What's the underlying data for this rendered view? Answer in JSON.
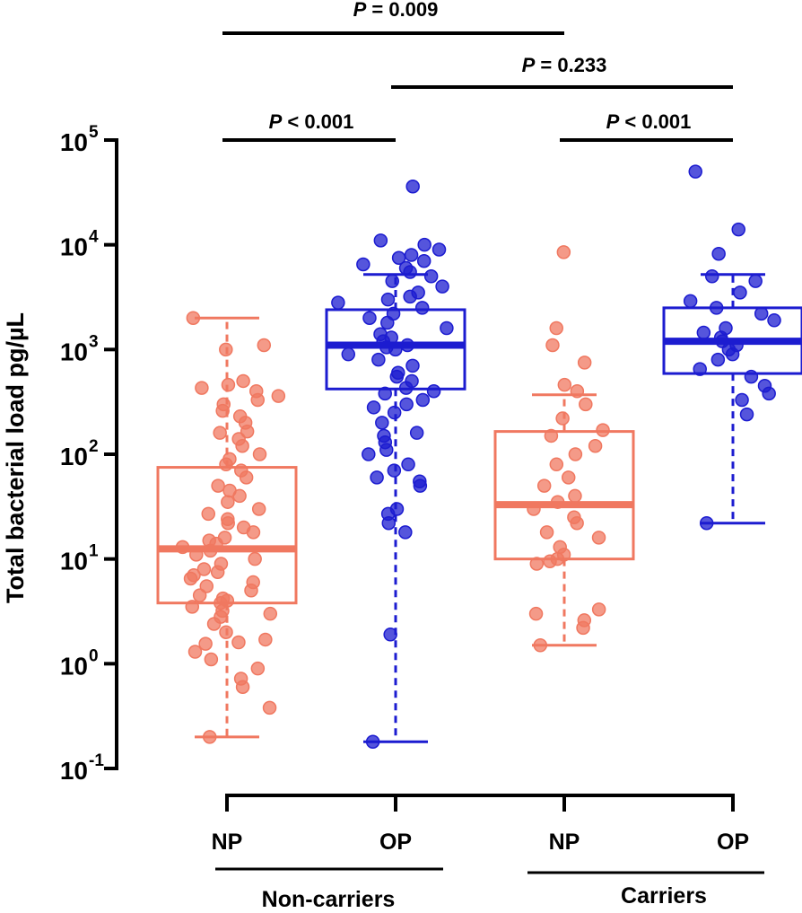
{
  "chart_data": {
    "type": "boxplot",
    "ylabel": "Total bacterial load pg/µL",
    "yscale": "log10",
    "ylim": [
      0.1,
      100000
    ],
    "y_ticks": [
      {
        "value": 0.1,
        "base": "10",
        "exp": "-1"
      },
      {
        "value": 1,
        "base": "10",
        "exp": "0"
      },
      {
        "value": 10,
        "base": "10",
        "exp": "1"
      },
      {
        "value": 100,
        "base": "10",
        "exp": "2"
      },
      {
        "value": 1000,
        "base": "10",
        "exp": "3"
      },
      {
        "value": 10000,
        "base": "10",
        "exp": "4"
      },
      {
        "value": 100000,
        "base": "10",
        "exp": "5"
      }
    ],
    "groups": [
      {
        "label": "Non-carriers",
        "categories": [
          0,
          1
        ]
      },
      {
        "label": "Carriers",
        "categories": [
          2,
          3
        ]
      }
    ],
    "categories": [
      "NP",
      "OP",
      "NP",
      "OP"
    ],
    "colors": {
      "NP": "#f07860",
      "OP": "#1c1cd0"
    },
    "boxes": [
      {
        "category": "NP",
        "group": "Non-carriers",
        "min": 0.2,
        "q1": 3.8,
        "median": 12.5,
        "q3": 75,
        "max": 2000,
        "points": [
          0.2,
          0.38,
          0.6,
          0.72,
          0.9,
          1.1,
          1.3,
          1.55,
          1.6,
          1.7,
          2,
          2.4,
          2.8,
          3,
          3.2,
          3.5,
          3.8,
          4,
          4.2,
          4.5,
          5,
          5.5,
          6,
          6.5,
          7,
          7.5,
          8,
          9,
          10,
          11,
          12,
          13,
          14,
          15,
          16,
          18,
          20,
          22,
          24,
          27,
          30,
          35,
          40,
          45,
          50,
          60,
          70,
          80,
          90,
          100,
          120,
          140,
          160,
          165,
          200,
          230,
          260,
          300,
          330,
          360,
          400,
          430,
          460,
          500,
          1000,
          1100,
          2000
        ]
      },
      {
        "category": "OP",
        "group": "Non-carriers",
        "min": 0.18,
        "q1": 420,
        "median": 1100,
        "q3": 2400,
        "max": 5200,
        "points": [
          0.18,
          1.9,
          18,
          22,
          27,
          30,
          50,
          55,
          60,
          70,
          80,
          100,
          110,
          130,
          150,
          160,
          200,
          250,
          280,
          300,
          330,
          380,
          400,
          430,
          500,
          550,
          600,
          700,
          800,
          900,
          1000,
          1050,
          1100,
          1200,
          1300,
          1400,
          1600,
          1800,
          2000,
          2200,
          2500,
          2800,
          3000,
          3200,
          3500,
          4000,
          4500,
          5000,
          5500,
          6000,
          6500,
          7000,
          7500,
          8000,
          9000,
          10000,
          11000,
          36000
        ]
      },
      {
        "category": "NP",
        "group": "Carriers",
        "min": 1.5,
        "q1": 10,
        "median": 33,
        "q3": 165,
        "max": 370,
        "points": [
          1.5,
          2.2,
          2.6,
          3,
          3.3,
          9,
          9.5,
          10,
          11,
          13,
          16,
          18,
          22,
          25,
          30,
          35,
          40,
          50,
          60,
          80,
          100,
          120,
          150,
          170,
          220,
          300,
          400,
          460,
          750,
          1100,
          1600,
          8500
        ]
      },
      {
        "category": "OP",
        "group": "Carriers",
        "min": 22,
        "q1": 590,
        "median": 1200,
        "q3": 2500,
        "max": 5200,
        "points": [
          22,
          240,
          330,
          380,
          450,
          550,
          650,
          800,
          900,
          1000,
          1100,
          1200,
          1300,
          1450,
          1600,
          1900,
          2200,
          2500,
          2900,
          3500,
          4500,
          5000,
          8200,
          14000,
          50000
        ]
      }
    ],
    "comparisons": [
      {
        "text": "P = 0.009",
        "from": 1,
        "to": 3,
        "label": "P",
        "op": "=",
        "value": "0.009"
      },
      {
        "text": "P = 0.233",
        "from": 2,
        "to": 4,
        "label": "P",
        "op": "=",
        "value": "0.233"
      },
      {
        "text": "P < 0.001",
        "from": 1,
        "to": 2,
        "label": "P",
        "op": "<",
        "value": "0.001"
      },
      {
        "text": "P < 0.001",
        "from": 3,
        "to": 4,
        "label": "P",
        "op": "<",
        "value": "0.001"
      }
    ]
  }
}
